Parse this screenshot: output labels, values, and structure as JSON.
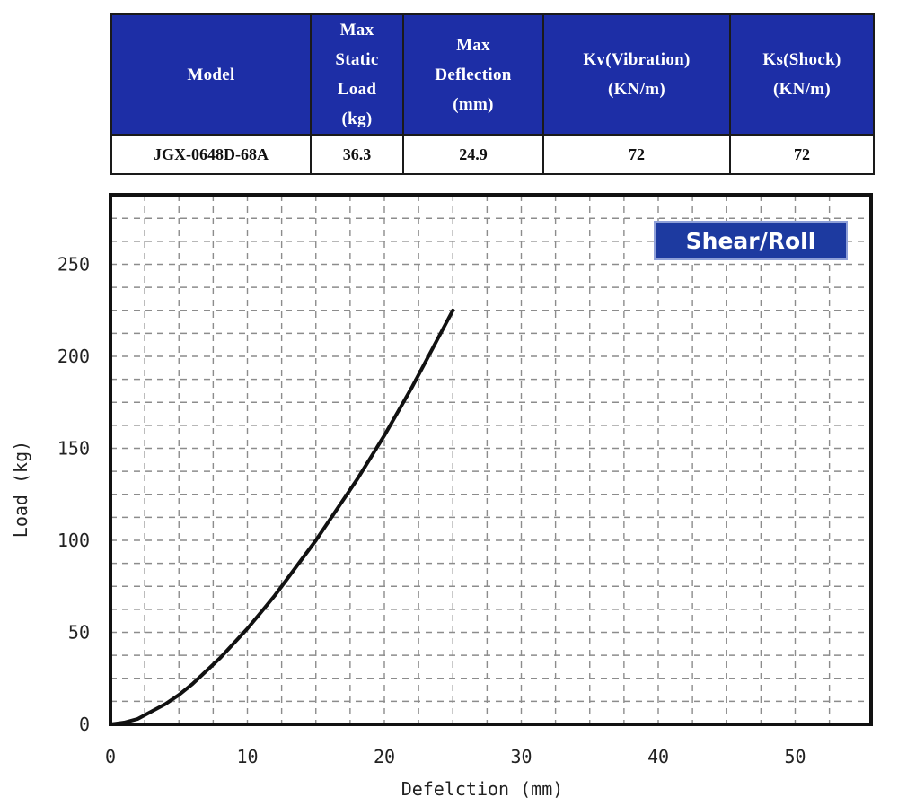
{
  "spec_table": {
    "headers": [
      "Max",
      "Static",
      "Load",
      "(kg)"
    ],
    "header_model": "Model",
    "header_max_static_load": [
      "Max",
      "Static",
      "Load",
      "(kg)"
    ],
    "header_max_deflection": [
      "Max",
      "Deflection",
      "(mm)"
    ],
    "header_kv": [
      "Kv(Vibration)",
      "(KN/m)"
    ],
    "header_ks": [
      "Ks(Shock)",
      "(KN/m)"
    ],
    "row": {
      "model": "JGX-0648D-68A",
      "max_static_load": "36.3",
      "max_deflection": "24.9",
      "kv": "72",
      "ks": "72"
    }
  },
  "chart_data": {
    "type": "line",
    "title": "",
    "legend_label": "Shear/Roll",
    "legend_placement": "top-right",
    "xlabel": "Defelction (mm)",
    "ylabel": "Load (kg)",
    "xlim": [
      0,
      55
    ],
    "ylim": [
      0,
      280
    ],
    "x_ticks": [
      0,
      10,
      20,
      30,
      40,
      50
    ],
    "y_ticks": [
      0,
      50,
      100,
      150,
      200,
      250
    ],
    "x_tick_labels": [
      "0",
      "10",
      "20",
      "30",
      "40",
      "50"
    ],
    "y_tick_labels": [
      "0",
      "50",
      "100",
      "150",
      "200",
      "250"
    ],
    "grid": true,
    "series": [
      {
        "name": "Shear/Roll",
        "x": [
          0,
          1,
          2,
          3,
          4,
          5,
          6,
          7,
          8,
          9,
          10,
          11,
          12,
          13,
          14,
          15,
          16,
          17,
          18,
          19,
          20,
          21,
          22,
          23,
          24,
          25
        ],
        "y": [
          0,
          1,
          3,
          7,
          11,
          16,
          22,
          29,
          36,
          44,
          52,
          61,
          70,
          80,
          90,
          100,
          111,
          122,
          133,
          145,
          157,
          170,
          183,
          197,
          211,
          225
        ]
      }
    ],
    "colors": {
      "line": "#111111",
      "legend_bg": "#1d3aa0",
      "frame": "#111111",
      "grid": "#8c8c8c"
    }
  }
}
